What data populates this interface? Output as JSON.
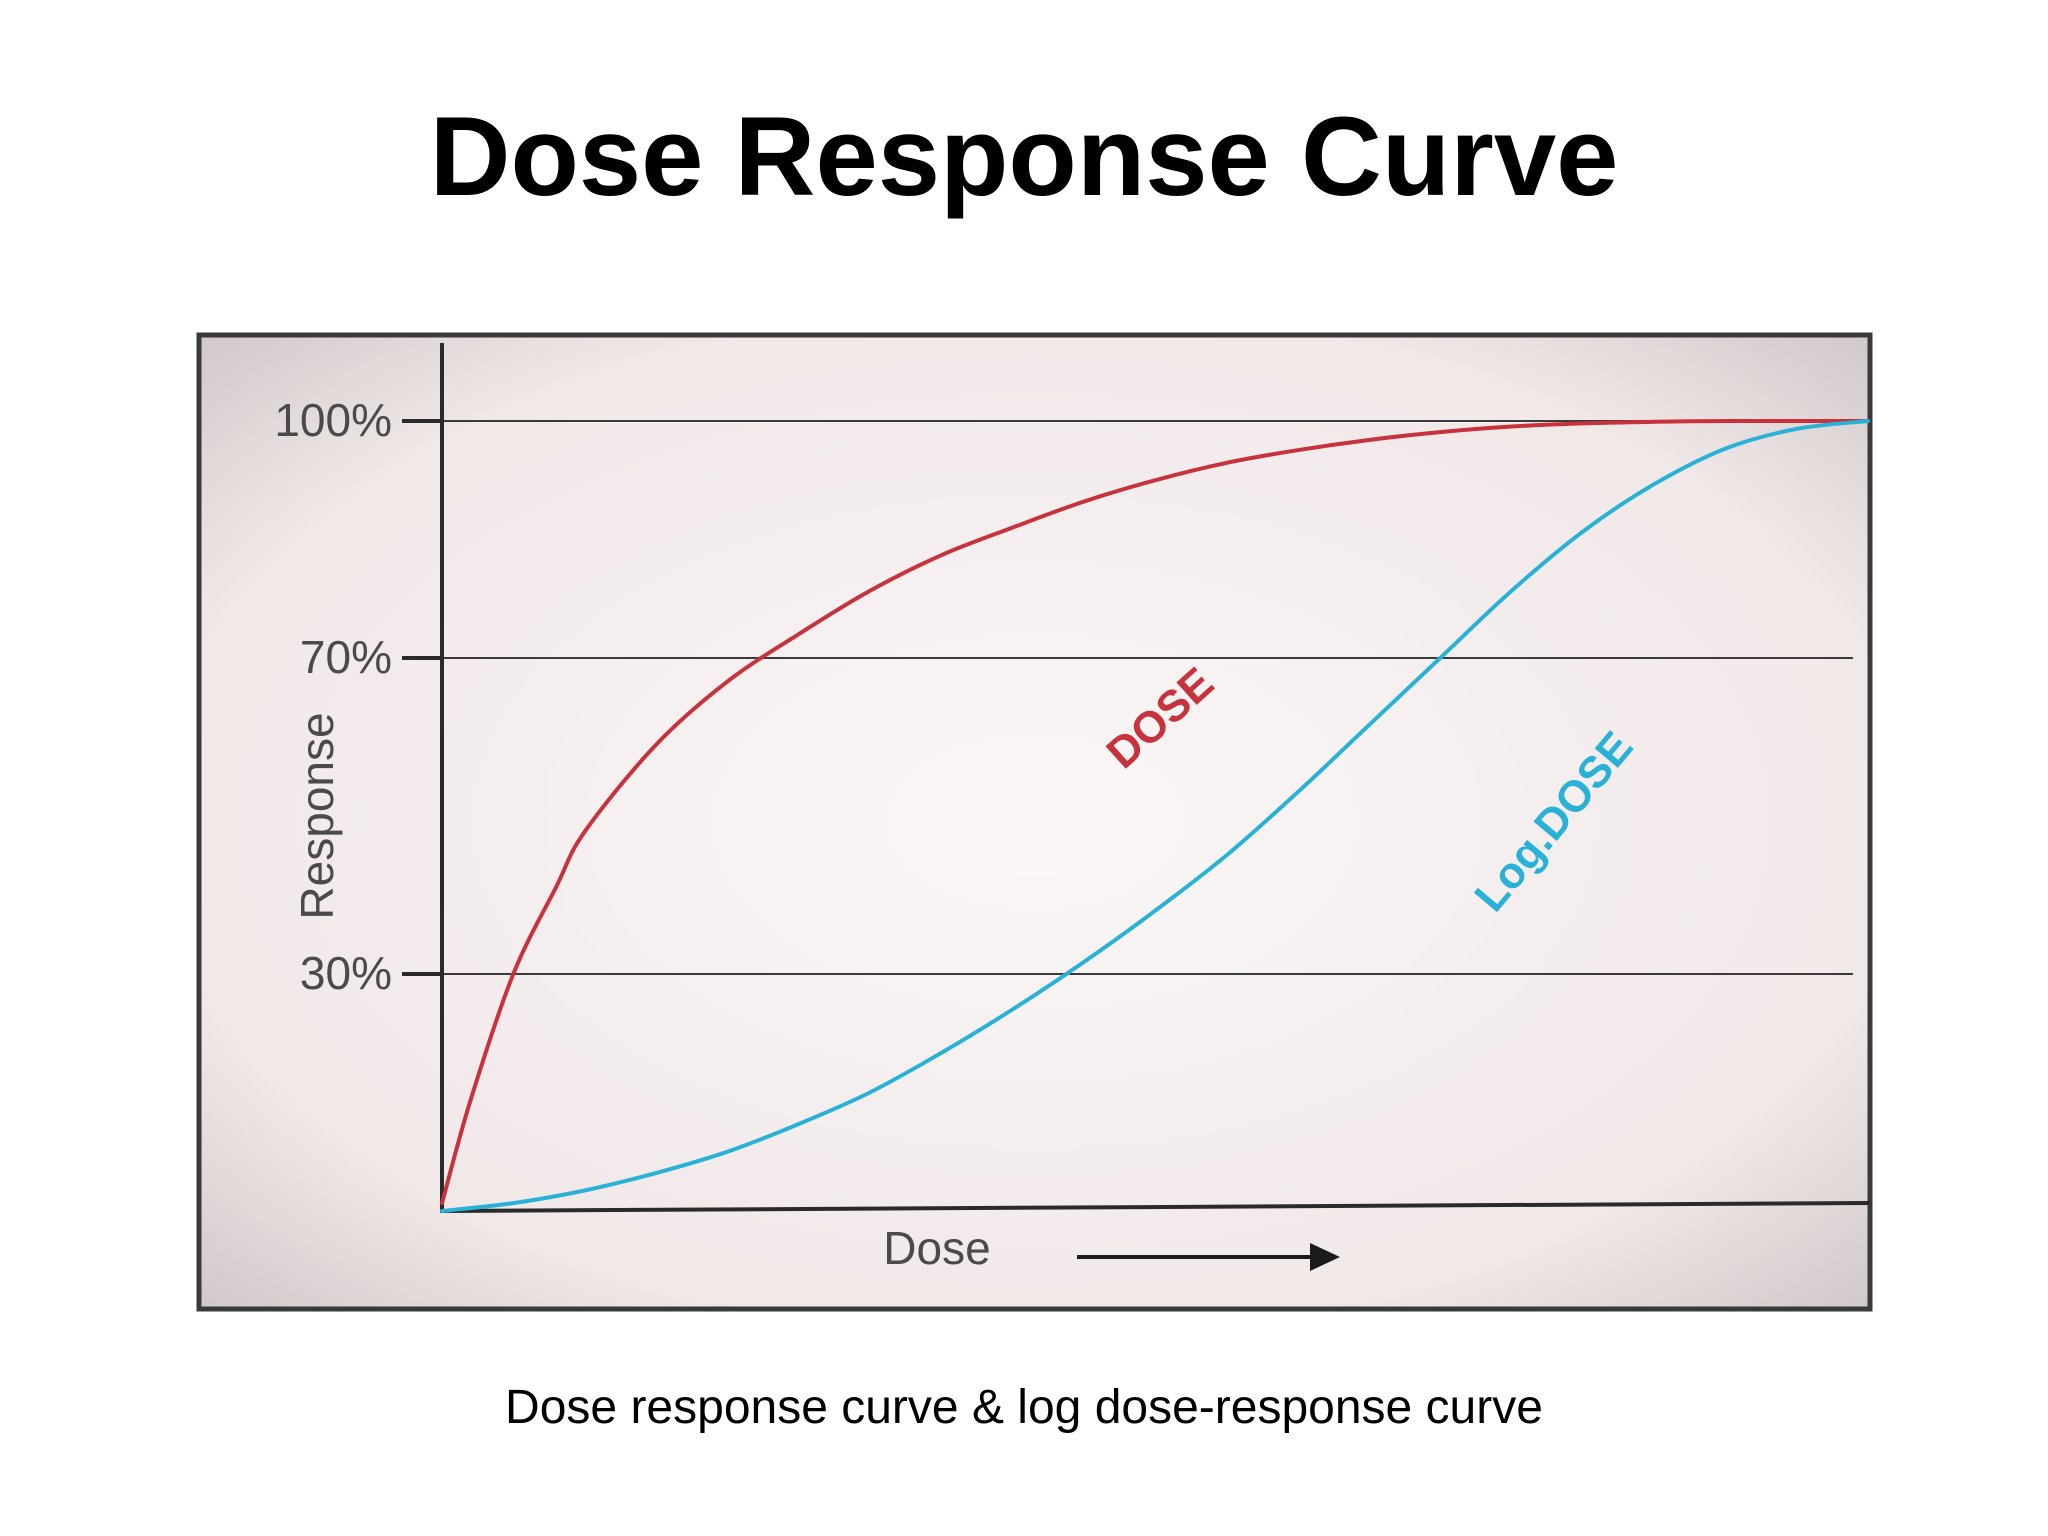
{
  "title": "Dose Response Curve",
  "caption": "Dose response curve & log dose-response curve",
  "chart_data": {
    "type": "line",
    "ylabel": "Response",
    "xlabel": "Dose",
    "x_unit_note": "dose (unlabeled axis, relative 0–1)",
    "ylim": [
      0,
      100
    ],
    "y_ticks": [
      {
        "value": 100,
        "label": "100%"
      },
      {
        "value": 70,
        "label": "70%"
      },
      {
        "value": 30,
        "label": "30%"
      }
    ],
    "grid": "horizontal lines at 30%, 70%, 100%",
    "series": [
      {
        "name": "DOSE",
        "color": "#c8323c",
        "x": [
          0,
          0.02,
          0.05,
          0.08,
          0.1,
          0.15,
          0.2,
          0.25,
          0.3,
          0.35,
          0.4,
          0.45,
          0.5,
          0.55,
          0.6,
          0.65,
          0.7,
          0.75,
          0.8,
          0.85,
          0.9,
          0.95,
          1.0
        ],
        "y": [
          1,
          14,
          30,
          41,
          48,
          59,
          67,
          73,
          78.5,
          83,
          86.5,
          89.8,
          92.5,
          94.7,
          96.3,
          97.6,
          98.6,
          99.3,
          99.7,
          99.9,
          100,
          100,
          100
        ]
      },
      {
        "name": "Log.DOSE",
        "color": "#29b1d8",
        "x": [
          0,
          0.05,
          0.1,
          0.15,
          0.2,
          0.25,
          0.3,
          0.35,
          0.4,
          0.45,
          0.5,
          0.55,
          0.6,
          0.65,
          0.7,
          0.75,
          0.8,
          0.85,
          0.9,
          0.95,
          1.0
        ],
        "y": [
          0,
          1,
          2.6,
          4.8,
          7.5,
          11,
          15,
          20,
          25.5,
          31.5,
          38,
          45,
          53,
          61.5,
          70,
          78.5,
          86,
          92,
          96.5,
          99,
          100
        ]
      }
    ],
    "annotations": [
      {
        "text": "DOSE",
        "color": "#c8323c"
      },
      {
        "text": "Log.DOSE",
        "color": "#29b1d8"
      }
    ]
  }
}
